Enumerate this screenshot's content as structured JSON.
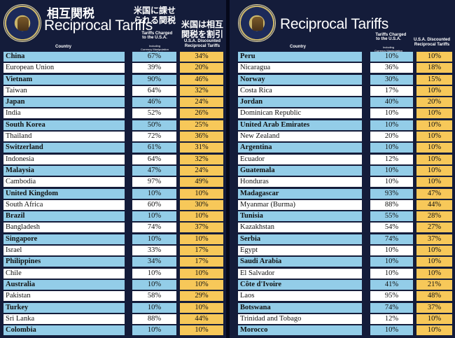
{
  "left": {
    "title_jp": "相互関税",
    "title_en": "Reciprocal Tariffs",
    "header": {
      "country": "Country",
      "charged_jp": "米国に課せ\nられる関税",
      "charged_en": "Tariffs Charged\nto the U.S.A.",
      "charged_note": "Including\nCurrency Manipulation\nand Trade Barriers",
      "discounted_jp": "米国は相互\n関税を割引",
      "discounted_en": "U.S.A. Discounted\nReciprocal Tariffs"
    },
    "rows": [
      {
        "country": "China",
        "charged": "67%",
        "discounted": "34%"
      },
      {
        "country": "European Union",
        "charged": "39%",
        "discounted": "20%"
      },
      {
        "country": "Vietnam",
        "charged": "90%",
        "discounted": "46%"
      },
      {
        "country": "Taiwan",
        "charged": "64%",
        "discounted": "32%"
      },
      {
        "country": "Japan",
        "charged": "46%",
        "discounted": "24%"
      },
      {
        "country": "India",
        "charged": "52%",
        "discounted": "26%"
      },
      {
        "country": "South Korea",
        "charged": "50%",
        "discounted": "25%"
      },
      {
        "country": "Thailand",
        "charged": "72%",
        "discounted": "36%"
      },
      {
        "country": "Switzerland",
        "charged": "61%",
        "discounted": "31%"
      },
      {
        "country": "Indonesia",
        "charged": "64%",
        "discounted": "32%"
      },
      {
        "country": "Malaysia",
        "charged": "47%",
        "discounted": "24%"
      },
      {
        "country": "Cambodia",
        "charged": "97%",
        "discounted": "49%"
      },
      {
        "country": "United Kingdom",
        "charged": "10%",
        "discounted": "10%"
      },
      {
        "country": "South Africa",
        "charged": "60%",
        "discounted": "30%"
      },
      {
        "country": "Brazil",
        "charged": "10%",
        "discounted": "10%"
      },
      {
        "country": "Bangladesh",
        "charged": "74%",
        "discounted": "37%"
      },
      {
        "country": "Singapore",
        "charged": "10%",
        "discounted": "10%"
      },
      {
        "country": "Israel",
        "charged": "33%",
        "discounted": "17%"
      },
      {
        "country": "Philippines",
        "charged": "34%",
        "discounted": "17%"
      },
      {
        "country": "Chile",
        "charged": "10%",
        "discounted": "10%"
      },
      {
        "country": "Australia",
        "charged": "10%",
        "discounted": "10%"
      },
      {
        "country": "Pakistan",
        "charged": "58%",
        "discounted": "29%"
      },
      {
        "country": "Turkey",
        "charged": "10%",
        "discounted": "10%"
      },
      {
        "country": "Sri Lanka",
        "charged": "88%",
        "discounted": "44%"
      },
      {
        "country": "Colombia",
        "charged": "10%",
        "discounted": "10%"
      }
    ]
  },
  "right": {
    "title_en": "Reciprocal Tariffs",
    "header": {
      "country": "Country",
      "charged_en": "Tariffs Charged\nto the U.S.A.",
      "charged_note": "Including\nCurrency Manipulation\nand Trade Barriers",
      "discounted_en": "U.S.A. Discounted\nReciprocal Tariffs"
    },
    "rows": [
      {
        "country": "Peru",
        "charged": "10%",
        "discounted": "10%"
      },
      {
        "country": "Nicaragua",
        "charged": "36%",
        "discounted": "18%"
      },
      {
        "country": "Norway",
        "charged": "30%",
        "discounted": "15%"
      },
      {
        "country": "Costa Rica",
        "charged": "17%",
        "discounted": "10%"
      },
      {
        "country": "Jordan",
        "charged": "40%",
        "discounted": "20%"
      },
      {
        "country": "Dominican Republic",
        "charged": "10%",
        "discounted": "10%"
      },
      {
        "country": "United Arab Emirates",
        "charged": "10%",
        "discounted": "10%"
      },
      {
        "country": "New Zealand",
        "charged": "20%",
        "discounted": "10%"
      },
      {
        "country": "Argentina",
        "charged": "10%",
        "discounted": "10%"
      },
      {
        "country": "Ecuador",
        "charged": "12%",
        "discounted": "10%"
      },
      {
        "country": "Guatemala",
        "charged": "10%",
        "discounted": "10%"
      },
      {
        "country": "Honduras",
        "charged": "10%",
        "discounted": "10%"
      },
      {
        "country": "Madagascar",
        "charged": "93%",
        "discounted": "47%"
      },
      {
        "country": "Myanmar (Burma)",
        "charged": "88%",
        "discounted": "44%"
      },
      {
        "country": "Tunisia",
        "charged": "55%",
        "discounted": "28%"
      },
      {
        "country": "Kazakhstan",
        "charged": "54%",
        "discounted": "27%"
      },
      {
        "country": "Serbia",
        "charged": "74%",
        "discounted": "37%"
      },
      {
        "country": "Egypt",
        "charged": "10%",
        "discounted": "10%"
      },
      {
        "country": "Saudi Arabia",
        "charged": "10%",
        "discounted": "10%"
      },
      {
        "country": "El Salvador",
        "charged": "10%",
        "discounted": "10%"
      },
      {
        "country": "Côte d'Ivoire",
        "charged": "41%",
        "discounted": "21%"
      },
      {
        "country": "Laos",
        "charged": "95%",
        "discounted": "48%"
      },
      {
        "country": "Botswana",
        "charged": "74%",
        "discounted": "37%"
      },
      {
        "country": "Trinidad and Tobago",
        "charged": "12%",
        "discounted": "10%"
      },
      {
        "country": "Morocco",
        "charged": "10%",
        "discounted": "10%"
      }
    ]
  },
  "colors": {
    "background": "#141c3a",
    "row_blue": "#93cde8",
    "row_white": "#ffffff",
    "discount_gold": "#f7c859"
  },
  "icons": [
    "presidential-seal-icon"
  ]
}
